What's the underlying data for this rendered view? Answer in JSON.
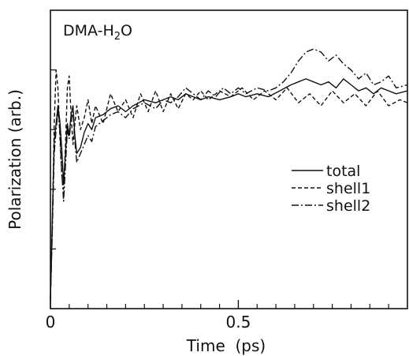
{
  "chart_data": {
    "type": "line",
    "title": "",
    "panel_label": {
      "base": "DMA-H",
      "sub": "2",
      "tail": "O"
    },
    "xlabel": "Time  (ps)",
    "ylabel": "Polarization (arb.)",
    "xlim": [
      0,
      0.95
    ],
    "ylim": [
      0,
      1.0
    ],
    "x_tick_labels": [
      {
        "value": 0,
        "label": "0"
      },
      {
        "value": 0.5,
        "label": "0.5"
      }
    ],
    "x_minor_ticks": [
      0.05,
      0.1,
      0.15,
      0.2,
      0.25,
      0.3,
      0.35,
      0.4,
      0.45,
      0.55,
      0.6,
      0.65,
      0.7,
      0.75,
      0.8,
      0.85,
      0.9
    ],
    "y_ticks": [
      0.2,
      0.4,
      0.6,
      0.8
    ],
    "legend_position": "right-middle",
    "series": [
      {
        "name": "total",
        "dash": "solid",
        "points": [
          [
            0.0,
            0.03
          ],
          [
            0.005,
            0.3
          ],
          [
            0.01,
            0.56
          ],
          [
            0.015,
            0.62
          ],
          [
            0.02,
            0.68
          ],
          [
            0.025,
            0.63
          ],
          [
            0.03,
            0.54
          ],
          [
            0.035,
            0.42
          ],
          [
            0.04,
            0.52
          ],
          [
            0.045,
            0.62
          ],
          [
            0.05,
            0.58
          ],
          [
            0.055,
            0.65
          ],
          [
            0.06,
            0.68
          ],
          [
            0.065,
            0.58
          ],
          [
            0.07,
            0.52
          ],
          [
            0.08,
            0.54
          ],
          [
            0.09,
            0.59
          ],
          [
            0.1,
            0.62
          ],
          [
            0.11,
            0.6
          ],
          [
            0.12,
            0.64
          ],
          [
            0.14,
            0.65
          ],
          [
            0.16,
            0.67
          ],
          [
            0.18,
            0.68
          ],
          [
            0.2,
            0.66
          ],
          [
            0.22,
            0.68
          ],
          [
            0.25,
            0.7
          ],
          [
            0.28,
            0.69
          ],
          [
            0.3,
            0.7
          ],
          [
            0.32,
            0.71
          ],
          [
            0.34,
            0.7
          ],
          [
            0.36,
            0.72
          ],
          [
            0.38,
            0.71
          ],
          [
            0.4,
            0.7
          ],
          [
            0.42,
            0.71
          ],
          [
            0.45,
            0.7
          ],
          [
            0.48,
            0.71
          ],
          [
            0.5,
            0.72
          ],
          [
            0.52,
            0.71
          ],
          [
            0.55,
            0.72
          ],
          [
            0.58,
            0.71
          ],
          [
            0.61,
            0.73
          ],
          [
            0.64,
            0.75
          ],
          [
            0.66,
            0.76
          ],
          [
            0.68,
            0.77
          ],
          [
            0.7,
            0.76
          ],
          [
            0.72,
            0.75
          ],
          [
            0.74,
            0.76
          ],
          [
            0.76,
            0.74
          ],
          [
            0.78,
            0.77
          ],
          [
            0.8,
            0.75
          ],
          [
            0.82,
            0.73
          ],
          [
            0.84,
            0.74
          ],
          [
            0.86,
            0.72
          ],
          [
            0.88,
            0.74
          ],
          [
            0.9,
            0.73
          ],
          [
            0.92,
            0.72
          ],
          [
            0.95,
            0.73
          ]
        ]
      },
      {
        "name": "shell1",
        "dash": "dashed",
        "points": [
          [
            0.0,
            0.03
          ],
          [
            0.005,
            0.28
          ],
          [
            0.01,
            0.62
          ],
          [
            0.015,
            0.8
          ],
          [
            0.02,
            0.74
          ],
          [
            0.025,
            0.58
          ],
          [
            0.03,
            0.45
          ],
          [
            0.035,
            0.4
          ],
          [
            0.04,
            0.55
          ],
          [
            0.045,
            0.74
          ],
          [
            0.05,
            0.78
          ],
          [
            0.055,
            0.65
          ],
          [
            0.06,
            0.55
          ],
          [
            0.065,
            0.62
          ],
          [
            0.07,
            0.68
          ],
          [
            0.08,
            0.6
          ],
          [
            0.09,
            0.64
          ],
          [
            0.1,
            0.7
          ],
          [
            0.11,
            0.62
          ],
          [
            0.12,
            0.68
          ],
          [
            0.14,
            0.62
          ],
          [
            0.16,
            0.72
          ],
          [
            0.18,
            0.66
          ],
          [
            0.2,
            0.7
          ],
          [
            0.22,
            0.64
          ],
          [
            0.24,
            0.72
          ],
          [
            0.26,
            0.66
          ],
          [
            0.28,
            0.73
          ],
          [
            0.3,
            0.66
          ],
          [
            0.32,
            0.72
          ],
          [
            0.34,
            0.67
          ],
          [
            0.36,
            0.72
          ],
          [
            0.38,
            0.7
          ],
          [
            0.4,
            0.73
          ],
          [
            0.42,
            0.7
          ],
          [
            0.45,
            0.73
          ],
          [
            0.48,
            0.71
          ],
          [
            0.51,
            0.74
          ],
          [
            0.54,
            0.7
          ],
          [
            0.57,
            0.73
          ],
          [
            0.6,
            0.7
          ],
          [
            0.63,
            0.74
          ],
          [
            0.66,
            0.69
          ],
          [
            0.69,
            0.72
          ],
          [
            0.72,
            0.68
          ],
          [
            0.75,
            0.73
          ],
          [
            0.78,
            0.69
          ],
          [
            0.81,
            0.72
          ],
          [
            0.84,
            0.68
          ],
          [
            0.87,
            0.73
          ],
          [
            0.9,
            0.68
          ],
          [
            0.93,
            0.7
          ],
          [
            0.95,
            0.69
          ]
        ]
      },
      {
        "name": "shell2",
        "dash": "dashdot",
        "points": [
          [
            0.0,
            0.03
          ],
          [
            0.005,
            0.26
          ],
          [
            0.01,
            0.52
          ],
          [
            0.015,
            0.6
          ],
          [
            0.02,
            0.66
          ],
          [
            0.025,
            0.6
          ],
          [
            0.03,
            0.46
          ],
          [
            0.035,
            0.36
          ],
          [
            0.04,
            0.48
          ],
          [
            0.045,
            0.6
          ],
          [
            0.05,
            0.57
          ],
          [
            0.055,
            0.63
          ],
          [
            0.06,
            0.66
          ],
          [
            0.065,
            0.56
          ],
          [
            0.07,
            0.49
          ],
          [
            0.08,
            0.52
          ],
          [
            0.09,
            0.55
          ],
          [
            0.1,
            0.58
          ],
          [
            0.11,
            0.56
          ],
          [
            0.12,
            0.61
          ],
          [
            0.14,
            0.63
          ],
          [
            0.16,
            0.65
          ],
          [
            0.18,
            0.66
          ],
          [
            0.2,
            0.64
          ],
          [
            0.22,
            0.67
          ],
          [
            0.25,
            0.69
          ],
          [
            0.28,
            0.67
          ],
          [
            0.3,
            0.7
          ],
          [
            0.32,
            0.69
          ],
          [
            0.34,
            0.71
          ],
          [
            0.36,
            0.74
          ],
          [
            0.38,
            0.72
          ],
          [
            0.4,
            0.7
          ],
          [
            0.42,
            0.73
          ],
          [
            0.44,
            0.71
          ],
          [
            0.46,
            0.74
          ],
          [
            0.48,
            0.72
          ],
          [
            0.5,
            0.74
          ],
          [
            0.52,
            0.72
          ],
          [
            0.55,
            0.74
          ],
          [
            0.58,
            0.73
          ],
          [
            0.6,
            0.74
          ],
          [
            0.62,
            0.76
          ],
          [
            0.64,
            0.79
          ],
          [
            0.66,
            0.83
          ],
          [
            0.68,
            0.86
          ],
          [
            0.7,
            0.87
          ],
          [
            0.72,
            0.86
          ],
          [
            0.74,
            0.83
          ],
          [
            0.76,
            0.85
          ],
          [
            0.78,
            0.82
          ],
          [
            0.8,
            0.8
          ],
          [
            0.82,
            0.77
          ],
          [
            0.84,
            0.79
          ],
          [
            0.86,
            0.75
          ],
          [
            0.88,
            0.76
          ],
          [
            0.9,
            0.78
          ],
          [
            0.92,
            0.74
          ],
          [
            0.95,
            0.75
          ]
        ]
      }
    ]
  }
}
